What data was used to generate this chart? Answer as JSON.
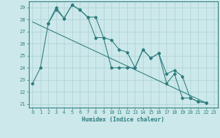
{
  "xlabel": "Humidex (Indice chaleur)",
  "xlim": [
    -0.5,
    23.5
  ],
  "ylim": [
    20.7,
    29.5
  ],
  "yticks": [
    21,
    22,
    23,
    24,
    25,
    26,
    27,
    28,
    29
  ],
  "xticks": [
    0,
    1,
    2,
    3,
    4,
    5,
    6,
    7,
    8,
    9,
    10,
    11,
    12,
    13,
    14,
    15,
    16,
    17,
    18,
    19,
    20,
    21,
    22,
    23
  ],
  "bg_color": "#cce8ea",
  "grid_color": "#aacfd2",
  "line_color": "#2e7d7d",
  "s1_x": [
    0,
    1,
    2,
    3,
    4,
    5,
    6,
    7,
    8,
    9,
    10,
    11,
    12,
    13,
    14,
    15,
    16,
    17,
    18,
    19,
    20,
    21,
    22
  ],
  "s1_y": [
    22.7,
    24.0,
    27.7,
    28.8,
    28.1,
    29.2,
    28.8,
    28.2,
    26.5,
    26.5,
    24.0,
    24.0,
    24.0,
    24.0,
    25.5,
    24.8,
    25.2,
    22.7,
    23.5,
    21.5,
    21.5,
    21.2,
    21.1
  ],
  "s2_x": [
    2,
    3,
    4,
    5,
    6,
    7,
    8,
    9,
    10,
    11,
    12,
    13,
    14,
    15,
    16,
    17,
    18,
    19,
    20,
    21,
    22
  ],
  "s2_y": [
    27.7,
    29.0,
    28.1,
    29.2,
    28.8,
    28.2,
    28.2,
    26.5,
    26.3,
    25.5,
    25.3,
    24.0,
    25.5,
    24.8,
    25.2,
    23.5,
    23.8,
    23.3,
    21.5,
    21.2,
    21.1
  ],
  "trend_x": [
    0,
    22
  ],
  "trend_y": [
    27.8,
    21.1
  ]
}
